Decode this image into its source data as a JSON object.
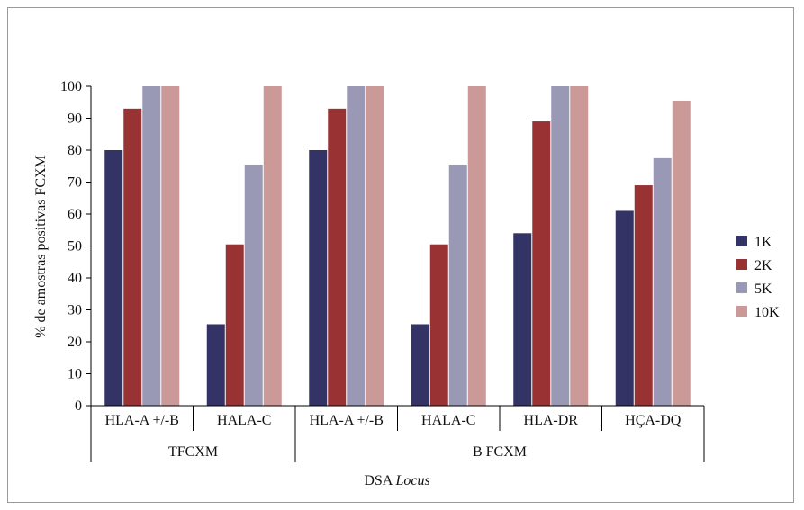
{
  "chart_data": {
    "type": "bar",
    "ylabel": "% de amostras positivas FCXM",
    "xlabel_prefix": "DSA",
    "xlabel_italic": "Locus",
    "ylim": [
      0,
      100
    ],
    "yticks": [
      0,
      10,
      20,
      30,
      40,
      50,
      60,
      70,
      80,
      90,
      100
    ],
    "categories": [
      "HLA-A +/-B",
      "HALA-C",
      "HLA-A +/-B",
      "HALA-C",
      "HLA-DR",
      "HÇA-DQ"
    ],
    "groups": [
      {
        "label": "TFCXM",
        "count": 2
      },
      {
        "label": "B FCXM",
        "count": 4
      }
    ],
    "series": [
      {
        "name": "1K",
        "color": "#333366",
        "values": [
          80,
          25.5,
          80,
          25.5,
          54,
          61
        ]
      },
      {
        "name": "2K",
        "color": "#993333",
        "values": [
          93,
          50.5,
          93,
          50.5,
          89,
          69
        ]
      },
      {
        "name": "5K",
        "color": "#9999b5",
        "values": [
          100,
          75.5,
          100,
          75.5,
          100,
          77.5
        ]
      },
      {
        "name": "10K",
        "color": "#cc9999",
        "values": [
          100,
          100,
          100,
          100,
          100,
          95.5
        ]
      }
    ],
    "legend_position": "right",
    "grid": false
  }
}
